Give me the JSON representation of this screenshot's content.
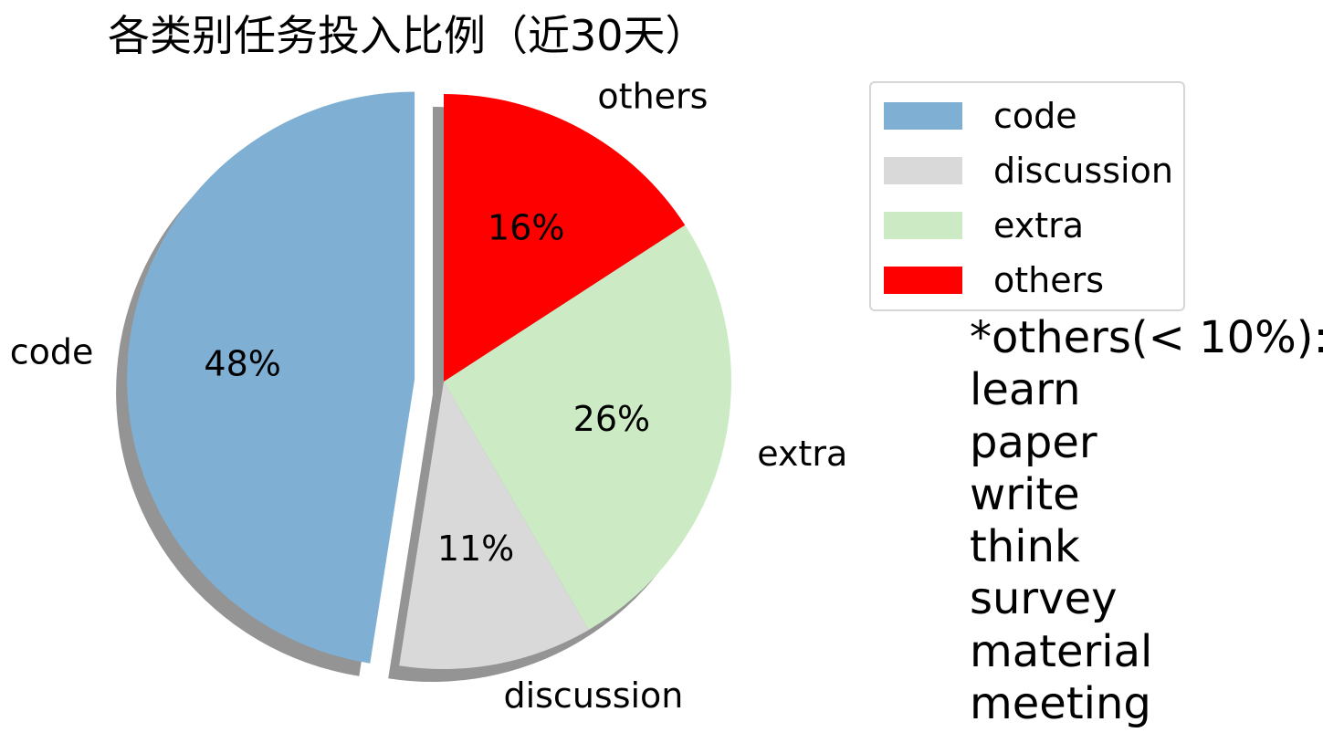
{
  "chart_data": {
    "type": "pie",
    "title": "各类别任务投入比例（近30天）",
    "categories": [
      "code",
      "discussion",
      "extra",
      "others"
    ],
    "values": [
      48,
      11,
      26,
      16
    ],
    "autopct_labels": [
      "48%",
      "11%",
      "26%",
      "16%"
    ],
    "colors": [
      "#7fb0d3",
      "#d9d9d9",
      "#ccebc5",
      "#ff0000"
    ],
    "explode": [
      true,
      false,
      false,
      false
    ],
    "shadow": true,
    "start_angle_deg": 90,
    "legend": {
      "placement": "upper-right",
      "entries": [
        "code",
        "discussion",
        "extra",
        "others"
      ]
    },
    "annotation": {
      "heading": "*others(< 10%):",
      "items": [
        "learn",
        "paper",
        "write",
        "think",
        "survey",
        "material",
        "meeting"
      ]
    }
  }
}
